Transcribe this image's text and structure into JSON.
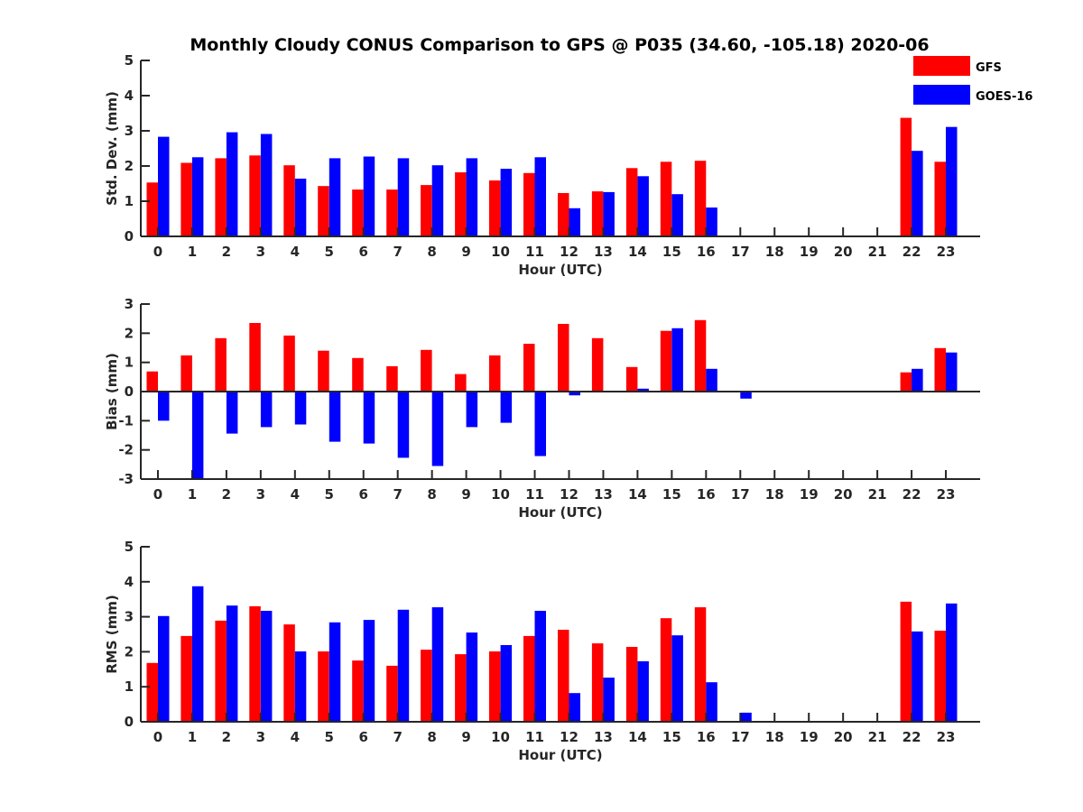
{
  "chart_data": {
    "type": "bar",
    "title": "Monthly Cloudy CONUS Comparison to GPS @ P035 (34.60, -105.18) 2020-06",
    "legend": {
      "placement": "top-right",
      "entries": [
        "GFS",
        "GOES-16"
      ]
    },
    "colors": {
      "GFS": "#ff0000",
      "GOES-16": "#0000ff",
      "axis": "#262626"
    },
    "categories": [
      "0",
      "1",
      "2",
      "3",
      "4",
      "5",
      "6",
      "7",
      "8",
      "9",
      "10",
      "11",
      "12",
      "13",
      "14",
      "15",
      "16",
      "17",
      "18",
      "19",
      "20",
      "21",
      "22",
      "23"
    ],
    "panels": [
      {
        "id": "std",
        "xlabel": "Hour (UTC)",
        "ylabel": "Std. Dev. (mm)",
        "ylim": [
          0,
          5
        ],
        "yticks": [
          0,
          1,
          2,
          3,
          4,
          5
        ],
        "grid": false,
        "series": [
          {
            "name": "GFS",
            "values": [
              1.53,
              2.09,
              2.22,
              2.3,
              2.02,
              1.43,
              1.33,
              1.33,
              1.46,
              1.82,
              1.59,
              1.8,
              1.23,
              1.28,
              1.94,
              2.12,
              2.15,
              0,
              0,
              0,
              0,
              0,
              3.37,
              2.12
            ]
          },
          {
            "name": "GOES-16",
            "values": [
              2.83,
              2.25,
              2.96,
              2.91,
              1.64,
              2.22,
              2.27,
              2.22,
              2.02,
              2.22,
              1.92,
              2.25,
              0.8,
              1.26,
              1.71,
              1.2,
              0.82,
              0,
              0,
              0,
              0,
              0,
              2.43,
              3.11
            ]
          }
        ]
      },
      {
        "id": "bias",
        "xlabel": "Hour (UTC)",
        "ylabel": "Bias (mm)",
        "ylim": [
          -3,
          3
        ],
        "yticks": [
          -3,
          -2,
          -1,
          0,
          1,
          2,
          3
        ],
        "grid": false,
        "zero_line": true,
        "series": [
          {
            "name": "GFS",
            "values": [
              0.69,
              1.24,
              1.83,
              2.35,
              1.92,
              1.4,
              1.15,
              0.87,
              1.43,
              0.6,
              1.24,
              1.64,
              2.32,
              1.83,
              0.84,
              2.08,
              2.45,
              0,
              0,
              0,
              0,
              0,
              0.66,
              1.49
            ]
          },
          {
            "name": "GOES-16",
            "values": [
              -1.0,
              -3.0,
              -1.44,
              -1.22,
              -1.13,
              -1.72,
              -1.78,
              -2.27,
              -2.55,
              -1.22,
              -1.07,
              -2.21,
              -0.13,
              0,
              0.1,
              2.17,
              0.78,
              -0.24,
              0,
              0,
              0,
              0,
              0.78,
              1.34
            ]
          }
        ]
      },
      {
        "id": "rms",
        "xlabel": "Hour (UTC)",
        "ylabel": "RMS (mm)",
        "ylim": [
          0,
          5
        ],
        "yticks": [
          0,
          1,
          2,
          3,
          4,
          5
        ],
        "grid": false,
        "series": [
          {
            "name": "GFS",
            "values": [
              1.68,
              2.45,
              2.89,
              3.3,
              2.78,
              2.01,
              1.75,
              1.6,
              2.06,
              1.93,
              2.01,
              2.45,
              2.63,
              2.24,
              2.14,
              2.96,
              3.27,
              0,
              0,
              0,
              0,
              0,
              3.43,
              2.6
            ]
          },
          {
            "name": "GOES-16",
            "values": [
              3.02,
              3.87,
              3.32,
              3.17,
              2.01,
              2.84,
              2.91,
              3.2,
              3.27,
              2.55,
              2.19,
              3.17,
              0.82,
              1.26,
              1.73,
              2.47,
              1.13,
              0.26,
              0,
              0,
              0,
              0,
              2.58,
              3.38
            ]
          }
        ]
      }
    ]
  }
}
